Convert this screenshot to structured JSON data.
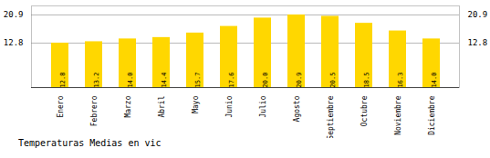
{
  "chart_data": {
    "type": "bar",
    "title": "Temperaturas Medias en vic",
    "categories": [
      "Enero",
      "Febrero",
      "Marzo",
      "Abril",
      "Mayo",
      "Junio",
      "Julio",
      "Agosto",
      "Septiembre",
      "Octubre",
      "Noviembre",
      "Diciembre"
    ],
    "values": [
      12.8,
      13.2,
      14.0,
      14.4,
      15.7,
      17.6,
      20.0,
      20.9,
      20.5,
      18.5,
      16.3,
      14.0
    ],
    "value_labels": [
      "12.8",
      "13.2",
      "14.0",
      "14.4",
      "15.7",
      "17.6",
      "20.0",
      "20.9",
      "20.5",
      "18.5",
      "16.3",
      "14.0"
    ],
    "data_labels": true,
    "color": "#FFD700",
    "ylim": [
      0.0,
      23.5
    ],
    "yticks": [
      12.8,
      20.9
    ],
    "grid": true
  }
}
